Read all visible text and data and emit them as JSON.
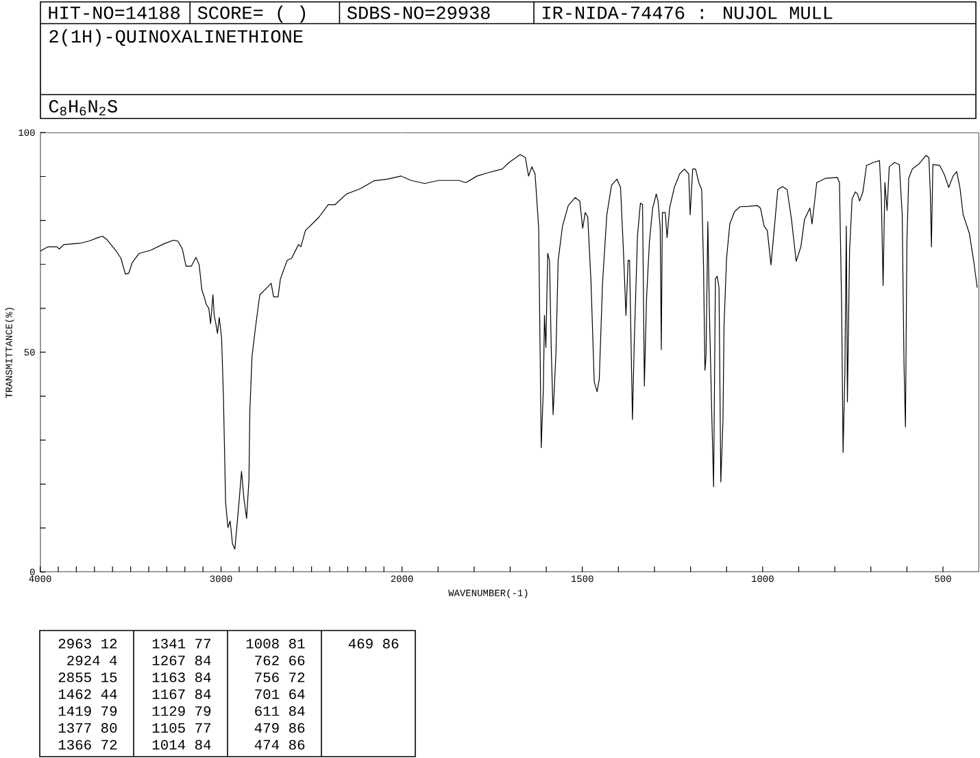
{
  "chart_data": [
    {
      "type": "line",
      "title": "2(1H)-QUINOXALINETHIONE",
      "subtitle": "C$_{8}$H$_{6}$N$_{2}$S",
      "ylabel": "TRANSMITTANCE(%)",
      "annotations": [
        "HIT-NO=14188",
        "SCORE= (   )",
        "SDBS-NO=29938",
        "IR-NIDA-74476 : NUJOL MULL",
        "2963 12",
        "2924 4",
        "2855 15",
        "1462 44",
        "1419 79",
        "1377 80",
        "1366 72",
        "1341 77",
        "1267 84",
        "1163 84",
        "1167 84",
        "1129 79",
        "1105 77",
        "1014 84",
        "1008 81",
        "762 66",
        "756 72",
        "701 64",
        "611 84",
        "479 86",
        "474 86",
        "469 86"
      ],
      "color": "#000000",
      "xlim": [
        4000,
        2000
      ],
      "ylim": [
        0,
        100
      ],
      "xticks": [
        4000,
        {
          "value": 3900,
          "label": null
        },
        {
          "value": 3800,
          "label": null
        },
        {
          "value": 3700,
          "label": null
        },
        {
          "value": 3600,
          "label": null
        },
        {
          "value": 3500,
          "label": null
        },
        {
          "value": 3400,
          "label": null
        },
        {
          "value": 3300,
          "label": null
        },
        {
          "value": 3200,
          "label": null
        },
        {
          "value": 3100,
          "label": null
        },
        3000,
        {
          "value": 2900,
          "label": null
        },
        {
          "value": 2800,
          "label": null
        },
        {
          "value": 2700,
          "label": null
        },
        {
          "value": 2600,
          "label": null
        },
        {
          "value": 2500,
          "label": null
        },
        {
          "value": 2400,
          "label": null
        },
        {
          "value": 2300,
          "label": null
        },
        {
          "value": 2200,
          "label": null
        },
        {
          "value": 2100,
          "label": null
        },
        2000
      ],
      "yticks": [
        0,
        {
          "value": 10,
          "label": null
        },
        {
          "value": 20,
          "label": null
        },
        {
          "value": 30,
          "label": null
        },
        {
          "value": 40,
          "label": null
        },
        50,
        {
          "value": 60,
          "label": null
        },
        {
          "value": 70,
          "label": null
        },
        {
          "value": 80,
          "label": null
        },
        {
          "value": 90,
          "label": null
        },
        100
      ],
      "x": [
        4000,
        3957,
        3907,
        3894,
        3869,
        3781,
        3730,
        3680,
        3655,
        3630,
        3579,
        3554,
        3529,
        3510,
        3491,
        3453,
        3390,
        3315,
        3264,
        3239,
        3214,
        3194,
        3164,
        3139,
        3121,
        3106,
        3093,
        3083,
        3068,
        3058,
        3045,
        3038,
        3028,
        3020,
        3010,
        2997,
        2987,
        2975,
        2962,
        2950,
        2937,
        2924,
        2912,
        2899,
        2887,
        2874,
        2859,
        2846,
        2841,
        2829,
        2811,
        2786,
        2761,
        2723,
        2710,
        2685,
        2672,
        2635,
        2610,
        2572,
        2559,
        2534,
        2484,
        2458,
        2408,
        2370,
        2307,
        2232,
        2156,
        2081,
        2005,
        2000
      ],
      "values": [
        73.0,
        74.0,
        74.0,
        73.5,
        74.5,
        74.8,
        75.3,
        76.1,
        76.4,
        75.6,
        73.0,
        71.4,
        67.8,
        68.0,
        70.4,
        72.5,
        73.2,
        74.7,
        75.5,
        75.3,
        73.5,
        69.6,
        69.6,
        71.6,
        69.9,
        64.1,
        62.6,
        61.0,
        60.0,
        56.5,
        63.1,
        58.4,
        56.3,
        54.3,
        57.9,
        53.2,
        39.7,
        15.8,
        10.1,
        11.6,
        6.4,
        5.2,
        10.6,
        16.8,
        22.9,
        16.8,
        12.2,
        21.0,
        36.6,
        49.1,
        55.3,
        63.1,
        64.1,
        65.7,
        62.6,
        62.6,
        66.7,
        70.9,
        71.4,
        74.5,
        74.0,
        77.7,
        79.7,
        80.8,
        83.6,
        83.6,
        86.0,
        87.2,
        89.0,
        89.4,
        90.1,
        90.0
      ]
    },
    {
      "type": "line",
      "xlabel": "WAVENUMBER(-1)",
      "color": "#000000",
      "xlim": [
        2000,
        400
      ],
      "ylim": [
        0,
        100
      ],
      "tick_labels": "x",
      "xticks": [
        {
          "value": 1900,
          "label": null
        },
        {
          "value": 1800,
          "label": null
        },
        {
          "value": 1700,
          "label": null
        },
        {
          "value": 1600,
          "label": null
        },
        1500,
        {
          "value": 1400,
          "label": null
        },
        {
          "value": 1300,
          "label": null
        },
        {
          "value": 1200,
          "label": null
        },
        {
          "value": 1100,
          "label": null
        },
        1000,
        {
          "value": 900,
          "label": null
        },
        {
          "value": 800,
          "label": null
        },
        {
          "value": 700,
          "label": null
        },
        {
          "value": 600,
          "label": null
        },
        500
      ],
      "x": [
        2000,
        1975,
        1937,
        1899,
        1842,
        1823,
        1792,
        1760,
        1722,
        1703,
        1672,
        1658,
        1649,
        1640,
        1631,
        1621,
        1614,
        1608,
        1605,
        1601,
        1596,
        1591,
        1586,
        1581,
        1573,
        1567,
        1555,
        1539,
        1520,
        1507,
        1499,
        1492,
        1485,
        1476,
        1467,
        1459,
        1453,
        1444,
        1432,
        1419,
        1404,
        1394,
        1386,
        1379,
        1373,
        1369,
        1361,
        1356,
        1347,
        1339,
        1333,
        1328,
        1322,
        1314,
        1305,
        1295,
        1290,
        1284,
        1281,
        1278,
        1270,
        1265,
        1258,
        1245,
        1230,
        1217,
        1205,
        1201,
        1194,
        1186,
        1177,
        1169,
        1164,
        1160,
        1157,
        1152,
        1148,
        1141,
        1136,
        1131,
        1126,
        1121,
        1116,
        1110,
        1107,
        1100,
        1091,
        1078,
        1063,
        1040,
        1015,
        1006,
        996,
        987,
        977,
        970,
        958,
        945,
        932,
        920,
        907,
        894,
        884,
        869,
        863,
        850,
        825,
        793,
        787,
        781,
        777,
        772,
        768,
        765,
        759,
        752,
        743,
        737,
        731,
        722,
        712,
        693,
        676,
        671,
        666,
        661,
        655,
        649,
        634,
        621,
        613,
        608,
        604,
        600,
        595,
        585,
        566,
        547,
        539,
        535,
        532,
        528,
        509,
        497,
        484,
        472,
        462,
        453,
        444,
        427,
        415,
        405
      ],
      "values": [
        90.0,
        89.1,
        88.4,
        89.1,
        89.1,
        88.6,
        90.1,
        90.9,
        91.7,
        93.2,
        95.0,
        94.3,
        90.1,
        92.2,
        90.6,
        78.2,
        28.3,
        41.8,
        58.4,
        51.1,
        72.5,
        70.9,
        50.1,
        35.8,
        50.1,
        70.9,
        78.7,
        83.4,
        85.2,
        84.4,
        78.2,
        81.8,
        80.8,
        66.2,
        43.3,
        41.0,
        43.9,
        65.7,
        81.3,
        88.0,
        89.4,
        87.5,
        73.0,
        58.4,
        70.9,
        70.9,
        34.7,
        52.2,
        76.6,
        83.9,
        83.6,
        42.3,
        62.1,
        75.1,
        82.8,
        86.0,
        84.4,
        78.2,
        50.6,
        81.8,
        81.8,
        76.1,
        82.8,
        87.5,
        90.6,
        91.7,
        90.6,
        81.3,
        91.7,
        91.7,
        88.6,
        87.0,
        69.9,
        45.9,
        49.1,
        79.7,
        60.5,
        35.6,
        19.4,
        66.7,
        67.3,
        64.7,
        20.5,
        34.5,
        56.3,
        71.4,
        79.2,
        82.0,
        83.1,
        83.2,
        83.4,
        82.8,
        78.7,
        77.7,
        69.9,
        76.1,
        87.0,
        87.7,
        87.0,
        80.2,
        70.7,
        74.0,
        80.2,
        82.8,
        79.2,
        88.6,
        89.6,
        89.8,
        88.6,
        60.5,
        27.2,
        45.4,
        78.7,
        38.7,
        73.0,
        84.9,
        86.5,
        86.0,
        84.4,
        86.5,
        92.5,
        93.2,
        93.6,
        85.4,
        65.2,
        88.6,
        82.3,
        92.2,
        93.2,
        92.7,
        81.3,
        47.0,
        33.0,
        75.1,
        89.6,
        91.7,
        92.9,
        94.8,
        94.3,
        86.0,
        74.0,
        92.7,
        92.5,
        90.6,
        87.5,
        90.1,
        91.1,
        87.5,
        81.3,
        77.1,
        70.9,
        64.7
      ]
    }
  ]
}
